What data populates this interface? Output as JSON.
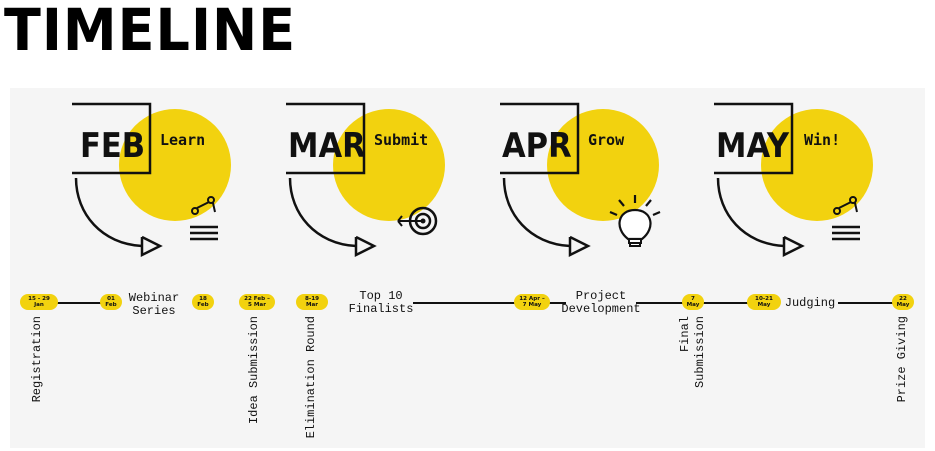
{
  "title": "TIMELINE",
  "colors": {
    "accent": "#f2d20f",
    "ink": "#111111",
    "panel": "#f5f5f5"
  },
  "months": [
    {
      "code": "FEB",
      "verb": "Learn",
      "icon": "network-list-icon"
    },
    {
      "code": "MAR",
      "verb": "Submit",
      "icon": "target-arrow-icon"
    },
    {
      "code": "APR",
      "verb": "Grow",
      "icon": "lightbulb-icon"
    },
    {
      "code": "MAY",
      "verb": "Win!",
      "icon": "network-list-icon"
    }
  ],
  "milestones": [
    {
      "date1": "15 - 29",
      "date2": "Jan"
    },
    {
      "date1": "01",
      "date2": "Feb"
    },
    {
      "date1": "18",
      "date2": "Feb"
    },
    {
      "date1": "22 Feb –",
      "date2": "5 Mar"
    },
    {
      "date1": "8-19",
      "date2": "Mar"
    },
    {
      "date1": "12 Apr –",
      "date2": "7 May"
    },
    {
      "date1": "7",
      "date2": "May"
    },
    {
      "date1": "10-21",
      "date2": "May"
    },
    {
      "date1": "22",
      "date2": "May"
    }
  ],
  "events": {
    "registration": "Registration",
    "webinar_1": "Webinar",
    "webinar_2": "Series",
    "idea_submission": "Idea Submission",
    "elimination_round": "Elimination Round",
    "top10_1": "Top 10",
    "top10_2": "Finalists",
    "project_1": "Project",
    "project_2": "Development",
    "final_1": "Final",
    "final_2": "Submission",
    "judging": "Judging",
    "prize_giving": "Prize Giving"
  }
}
